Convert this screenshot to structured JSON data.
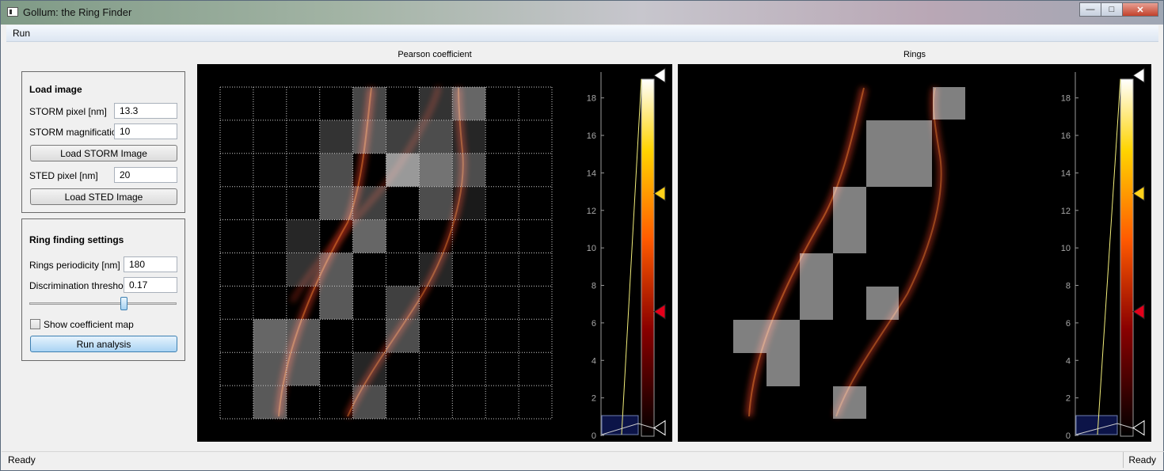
{
  "window": {
    "title": "Gollum: the Ring Finder",
    "min_glyph": "—",
    "max_glyph": "□",
    "close_glyph": "✕"
  },
  "menu": {
    "run": "Run"
  },
  "load_image": {
    "title": "Load image",
    "storm_pixel_label": "STORM pixel [nm]",
    "storm_pixel_value": "13.3",
    "storm_mag_label": "STORM magnification",
    "storm_mag_value": "10",
    "load_storm_button": "Load STORM Image",
    "sted_pixel_label": "STED pixel [nm]",
    "sted_pixel_value": "20",
    "load_sted_button": "Load STED Image"
  },
  "ring_settings": {
    "title": "Ring finding settings",
    "periodicity_label": "Rings periodicity [nm]",
    "periodicity_value": "180",
    "threshold_label": "Discrimination threshold",
    "threshold_value": "0.17",
    "slider_fraction": 0.65,
    "show_map_label": "Show coefficient map",
    "show_map_checked": false,
    "run_button": "Run analysis"
  },
  "panels": {
    "pearson_title": "Pearson coefficient",
    "rings_title": "Rings"
  },
  "colorbar": {
    "ticks": [
      "0",
      "2",
      "4",
      "6",
      "8",
      "10",
      "12",
      "14",
      "16",
      "18"
    ],
    "range": [
      0,
      19
    ],
    "handles": [
      19.2,
      12.9,
      6.6,
      0.4
    ]
  },
  "status": {
    "left": "Ready",
    "right": "Ready"
  },
  "colors": {
    "background": "#000000",
    "grid": "#cfcfcf",
    "overlay": "#ffffff",
    "histogram": "#0c1448"
  }
}
